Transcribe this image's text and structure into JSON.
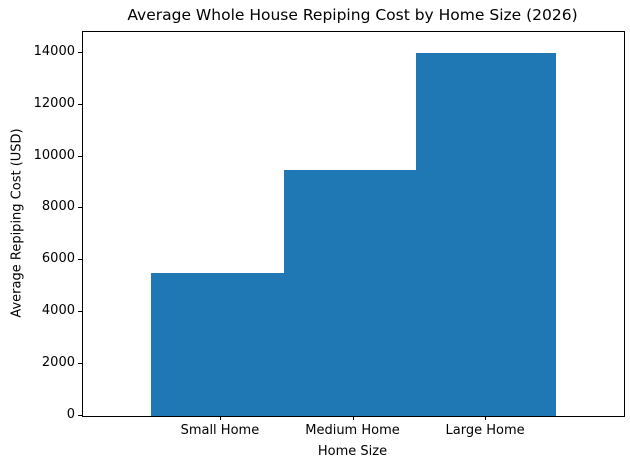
{
  "chart_data": {
    "type": "bar",
    "title": "Average Whole House Repiping Cost by Home Size (2026)",
    "xlabel": "Home Size",
    "ylabel": "Average Repiping Cost (USD)",
    "categories": [
      "Small Home",
      "Medium Home",
      "Large Home"
    ],
    "values": [
      5500,
      9500,
      14000
    ],
    "yticks": [
      0,
      2000,
      4000,
      6000,
      8000,
      10000,
      12000,
      14000
    ],
    "ylim": [
      0,
      14800
    ],
    "bar_color": "#1f77b4",
    "grid": false,
    "legend": "none",
    "spine_color": "#000000",
    "background_color": "#ffffff"
  }
}
